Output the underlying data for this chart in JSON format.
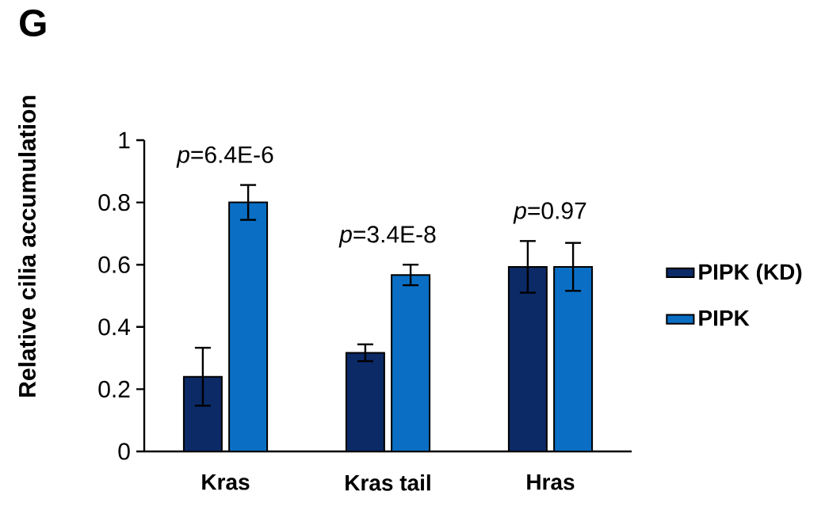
{
  "chart_data": {
    "type": "bar",
    "title": "G",
    "ylabel": "Relative cilia accumulation",
    "categories": [
      "Kras",
      "Kras tail",
      "Hras"
    ],
    "series": [
      {
        "name": "PIPK (KD)",
        "color": "#0b2a66",
        "values": [
          0.24,
          0.317,
          0.593
        ],
        "errors": [
          0.093,
          0.027,
          0.083
        ]
      },
      {
        "name": "PIPK",
        "color": "#0a6fc4",
        "values": [
          0.8,
          0.567,
          0.593
        ],
        "errors": [
          0.056,
          0.033,
          0.077
        ]
      }
    ],
    "ylim": [
      0,
      1
    ],
    "yticks": [
      0,
      0.2,
      0.4,
      0.6,
      0.8,
      1
    ],
    "annotations": [
      "*p*=6.4E-6",
      "*p*=3.4E-8",
      "*p*=0.97"
    ],
    "legend": "right",
    "grid": false
  }
}
